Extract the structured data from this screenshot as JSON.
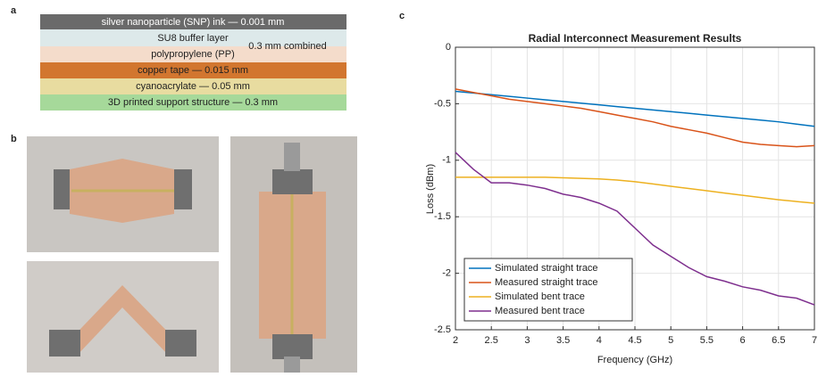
{
  "figure": {
    "panel_a": {
      "label": "a",
      "layers": [
        "silver nanoparticle (SNP) ink — 0.001 mm",
        "SU8 buffer layer",
        "polypropylene (PP)",
        "copper tape — 0.015 mm",
        "cyanoacrylate — 0.05 mm",
        "3D printed support structure — 0.3 mm"
      ],
      "combined_note": "0.3 mm combined"
    },
    "panel_b": {
      "label": "b"
    },
    "panel_c": {
      "label": "c"
    }
  },
  "chart_data": {
    "type": "line",
    "title": "Radial Interconnect Measurement Results",
    "x_label": "Frequency (GHz)",
    "y_label": "Loss (dBm)",
    "x": [
      2,
      2.25,
      2.5,
      2.75,
      3,
      3.25,
      3.5,
      3.75,
      4,
      4.25,
      4.5,
      4.75,
      5,
      5.25,
      5.5,
      5.75,
      6,
      6.25,
      6.5,
      6.75,
      7
    ],
    "series": [
      {
        "name": "Simulated straight trace",
        "color": "#0072bd",
        "values": [
          -0.39,
          -0.405,
          -0.42,
          -0.435,
          -0.45,
          -0.465,
          -0.48,
          -0.495,
          -0.51,
          -0.525,
          -0.54,
          -0.555,
          -0.57,
          -0.585,
          -0.6,
          -0.615,
          -0.63,
          -0.645,
          -0.66,
          -0.68,
          -0.7
        ]
      },
      {
        "name": "Measured straight trace",
        "color": "#d95319",
        "values": [
          -0.37,
          -0.4,
          -0.43,
          -0.46,
          -0.48,
          -0.5,
          -0.52,
          -0.54,
          -0.57,
          -0.6,
          -0.63,
          -0.66,
          -0.7,
          -0.73,
          -0.76,
          -0.8,
          -0.84,
          -0.86,
          -0.87,
          -0.88,
          -0.87
        ]
      },
      {
        "name": "Simulated bent trace",
        "color": "#edb120",
        "values": [
          -1.15,
          -1.15,
          -1.15,
          -1.15,
          -1.15,
          -1.15,
          -1.155,
          -1.16,
          -1.165,
          -1.175,
          -1.19,
          -1.21,
          -1.23,
          -1.25,
          -1.27,
          -1.29,
          -1.31,
          -1.33,
          -1.35,
          -1.365,
          -1.38
        ]
      },
      {
        "name": "Measured bent trace",
        "color": "#7e2f8e",
        "values": [
          -0.93,
          -1.08,
          -1.2,
          -1.2,
          -1.22,
          -1.25,
          -1.3,
          -1.33,
          -1.38,
          -1.45,
          -1.6,
          -1.75,
          -1.85,
          -1.95,
          -2.03,
          -2.07,
          -2.12,
          -2.15,
          -2.2,
          -2.22,
          -2.28
        ]
      }
    ],
    "xlim": [
      2,
      7
    ],
    "xticks": [
      2,
      2.5,
      3,
      3.5,
      4,
      4.5,
      5,
      5.5,
      6,
      6.5,
      7
    ],
    "ylim": [
      -2.5,
      0
    ],
    "yticks": [
      -2.5,
      -2,
      -1.5,
      -1,
      -0.5,
      0
    ],
    "grid": true,
    "legend": "lower-left"
  }
}
